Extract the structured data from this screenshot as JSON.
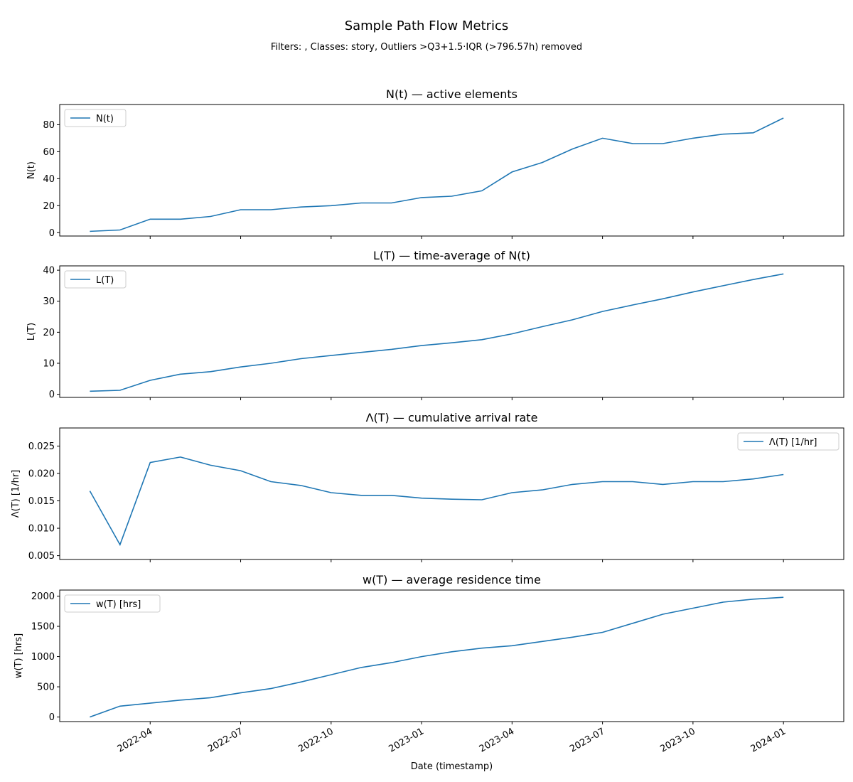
{
  "title": "Sample Path Flow Metrics",
  "subtitle": "Filters: , Classes: story, Outliers >Q3+1.5·IQR (>796.57h) removed",
  "xlabel": "Date (timestamp)",
  "x": [
    "2022-02",
    "2022-03",
    "2022-04",
    "2022-05",
    "2022-06",
    "2022-07",
    "2022-08",
    "2022-09",
    "2022-10",
    "2022-11",
    "2022-12",
    "2023-01",
    "2023-02",
    "2023-03",
    "2023-04",
    "2023-05",
    "2023-06",
    "2023-07",
    "2023-08",
    "2023-09",
    "2023-10",
    "2023-11",
    "2023-12",
    "2024-01"
  ],
  "xlim": [
    "2022-01",
    "2024-03"
  ],
  "xticks": [
    "2022-04",
    "2022-07",
    "2022-10",
    "2023-01",
    "2023-04",
    "2023-07",
    "2023-10",
    "2024-01"
  ],
  "chart_data": [
    {
      "type": "line",
      "title": "N(t) — active elements",
      "ylabel": "N(t)",
      "ylim": [
        -2.5,
        95
      ],
      "yticks": [
        0,
        20,
        40,
        60,
        80
      ],
      "legend": "upper left",
      "series": [
        {
          "name": "N(t)",
          "color": "#1f77b4",
          "values": [
            1,
            2,
            10,
            10,
            12,
            17,
            17,
            19,
            20,
            22,
            22,
            26,
            27,
            31,
            45,
            52,
            62,
            70,
            66,
            66,
            70,
            73,
            74,
            85
          ]
        }
      ]
    },
    {
      "type": "line",
      "title": "L(T) — time-average of N(t)",
      "ylabel": "L(T)",
      "ylim": [
        -1,
        41.4
      ],
      "yticks": [
        0,
        10,
        20,
        30,
        40
      ],
      "legend": "upper left",
      "series": [
        {
          "name": "L(T)",
          "color": "#1f77b4",
          "values": [
            1,
            1.3,
            4.5,
            6.5,
            7.3,
            8.8,
            10,
            11.5,
            12.5,
            13.5,
            14.5,
            15.7,
            16.6,
            17.6,
            19.5,
            21.8,
            24,
            26.7,
            28.8,
            30.8,
            33,
            35,
            37,
            38.8
          ]
        }
      ]
    },
    {
      "type": "line",
      "title": "Λ(T) — cumulative arrival rate",
      "ylabel": "Λ(T) [1/hr]",
      "ylim": [
        0.0043,
        0.0283
      ],
      "yticks": [
        0.005,
        {
          "value": 0.01,
          "label": "0.010"
        },
        0.015,
        {
          "value": 0.02,
          "label": "0.020"
        },
        0.025
      ],
      "legend": "upper right",
      "series": [
        {
          "name": "Λ(T) [1/hr]",
          "color": "#1f77b4",
          "values": [
            0.0168,
            0.007,
            0.022,
            0.023,
            0.0215,
            0.0205,
            0.0185,
            0.0178,
            0.0165,
            0.016,
            0.016,
            0.0155,
            0.0153,
            0.0152,
            0.0165,
            0.017,
            0.018,
            0.0185,
            0.0185,
            0.018,
            0.0185,
            0.0185,
            0.019,
            0.0198
          ]
        }
      ]
    },
    {
      "type": "line",
      "title": "w(T) — average residence time",
      "ylabel": "w(T) [hrs]",
      "ylim": [
        -75,
        2100
      ],
      "yticks": [
        0,
        500,
        1000,
        1500,
        2000
      ],
      "legend": "upper left",
      "series": [
        {
          "name": "w(T) [hrs]",
          "color": "#1f77b4",
          "values": [
            0,
            180,
            230,
            280,
            320,
            400,
            470,
            580,
            700,
            820,
            900,
            1000,
            1080,
            1140,
            1180,
            1250,
            1320,
            1400,
            1550,
            1700,
            1800,
            1900,
            1950,
            1980
          ]
        }
      ]
    }
  ]
}
